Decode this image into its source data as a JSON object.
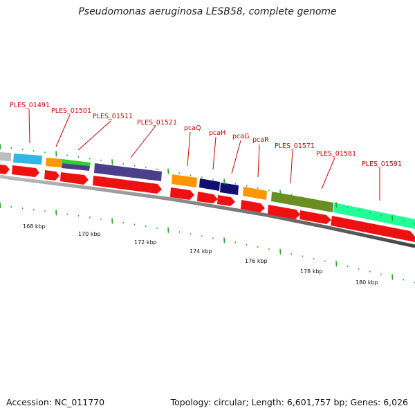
{
  "title": "Pseudomonas aeruginosa LESB58, complete genome",
  "footer": {
    "accession": "Accession: NC_011770",
    "summary": "Topology: circular; Length: 6,601,757 bp; Genes: 6,026"
  },
  "gene_labels": [
    "PLES_01491",
    "PLES_01501",
    "PLES_01511",
    "PLES_01521",
    "pcaQ",
    "pcaH",
    "pcaG",
    "pcaR",
    "PLES_01571",
    "PLES_01581",
    "PLES_01591"
  ],
  "scale_labels": [
    "168 kbp",
    "170 kbp",
    "172 kbp",
    "174 kbp",
    "176 kbp",
    "178 kbp",
    "180 kbp"
  ],
  "colors": {
    "backbone": "#777777",
    "cds": "#ee1111",
    "label": "#cc0000",
    "tick": "#22aa22"
  }
}
